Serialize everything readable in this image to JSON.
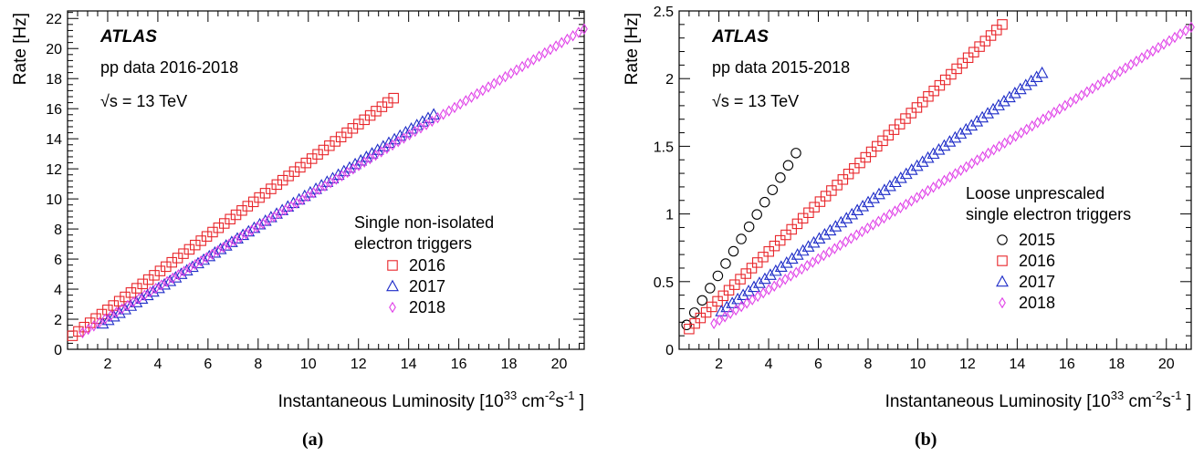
{
  "chart_data": [
    {
      "type": "scatter",
      "panel_label": "(a)",
      "atlas": "ATLAS",
      "info_line1": "pp data 2016-2018",
      "info_line2": "√s = 13 TeV",
      "xlabel_main": "Instantaneous Luminosity [10",
      "xlabel_exp": "33",
      "xlabel_unit": " cm",
      "xlabel_exp2": "-2",
      "xlabel_s": "s",
      "xlabel_exp3": "-1",
      "xlabel_end": " ]",
      "ylabel": "Rate [Hz]",
      "xlim": [
        0.4,
        21.0
      ],
      "ylim": [
        0,
        22.5
      ],
      "xticks": [
        2,
        4,
        6,
        8,
        10,
        12,
        14,
        16,
        18,
        20
      ],
      "yticks": [
        0,
        2,
        4,
        6,
        8,
        10,
        12,
        14,
        16,
        18,
        20,
        22
      ],
      "legend_title": [
        "Single non-isolated",
        "electron triggers"
      ],
      "series": [
        {
          "name": "2016",
          "marker": "square",
          "color": "#e8262b",
          "x_start": 0.6,
          "x_end": 13.4,
          "y_start": 0.9,
          "y_end": 16.7,
          "n": 56
        },
        {
          "name": "2017",
          "marker": "triangle",
          "color": "#1f2dc8",
          "x_start": 1.8,
          "x_end": 15.0,
          "y_start": 1.7,
          "y_end": 15.6,
          "n": 60
        },
        {
          "name": "2018",
          "marker": "diamond",
          "color": "#e040e8",
          "x_start": 1.0,
          "x_end": 21.0,
          "y_start": 1.1,
          "y_end": 21.3,
          "n": 90
        }
      ]
    },
    {
      "type": "scatter",
      "panel_label": "(b)",
      "atlas": "ATLAS",
      "info_line1": "pp data 2015-2018",
      "info_line2": "√s = 13 TeV",
      "xlabel_main": "Instantaneous Luminosity [10",
      "xlabel_exp": "33",
      "xlabel_unit": " cm",
      "xlabel_exp2": "-2",
      "xlabel_s": "s",
      "xlabel_exp3": "-1",
      "xlabel_end": " ]",
      "ylabel": "Rate [Hz]",
      "xlim": [
        0.4,
        21.0
      ],
      "ylim": [
        0,
        2.5
      ],
      "xticks": [
        2,
        4,
        6,
        8,
        10,
        12,
        14,
        16,
        18,
        20
      ],
      "yticks": [
        0,
        0.5,
        1,
        1.5,
        2,
        2.5
      ],
      "legend_title": [
        "Loose unprescaled",
        "single electron triggers"
      ],
      "series": [
        {
          "name": "2015",
          "marker": "circle",
          "color": "#000000",
          "x_start": 0.7,
          "x_end": 5.1,
          "y_start": 0.18,
          "y_end": 1.45,
          "n": 15
        },
        {
          "name": "2016",
          "marker": "square",
          "color": "#e8262b",
          "x_start": 0.8,
          "x_end": 13.4,
          "y_start": 0.15,
          "y_end": 2.4,
          "n": 56
        },
        {
          "name": "2017",
          "marker": "triangle",
          "color": "#1f2dc8",
          "x_start": 2.1,
          "x_end": 15.0,
          "y_start": 0.28,
          "y_end": 2.04,
          "n": 60
        },
        {
          "name": "2018",
          "marker": "diamond",
          "color": "#e040e8",
          "x_start": 1.8,
          "x_end": 21.0,
          "y_start": 0.19,
          "y_end": 2.38,
          "n": 88
        }
      ]
    }
  ]
}
